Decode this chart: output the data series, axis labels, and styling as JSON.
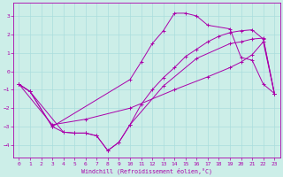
{
  "xlabel": "Windchill (Refroidissement éolien,°C)",
  "bg_color": "#cceee8",
  "line_color": "#aa00aa",
  "grid_color": "#aadddd",
  "xlim": [
    -0.5,
    23.5
  ],
  "ylim": [
    -4.7,
    3.7
  ],
  "yticks": [
    -4,
    -3,
    -2,
    -1,
    0,
    1,
    2,
    3
  ],
  "xticks": [
    0,
    1,
    2,
    3,
    4,
    5,
    6,
    7,
    8,
    9,
    10,
    11,
    12,
    13,
    14,
    15,
    16,
    17,
    18,
    19,
    20,
    21,
    22,
    23
  ],
  "line1_x": [
    0,
    1,
    3,
    10,
    11,
    12,
    13,
    14,
    15,
    16,
    17,
    19,
    20,
    21,
    22,
    23
  ],
  "line1_y": [
    -0.7,
    -1.1,
    -3.0,
    -0.45,
    0.5,
    1.5,
    2.2,
    3.15,
    3.15,
    3.0,
    2.5,
    2.3,
    0.75,
    0.6,
    -0.7,
    -1.2
  ],
  "line2_x": [
    0,
    1,
    3,
    4,
    5,
    6,
    7,
    8,
    9,
    10,
    13,
    16,
    19,
    20,
    21,
    22,
    23
  ],
  "line2_y": [
    -0.7,
    -1.1,
    -3.0,
    -3.3,
    -3.35,
    -3.35,
    -3.5,
    -4.3,
    -3.85,
    -2.9,
    -0.8,
    0.7,
    1.5,
    1.6,
    1.75,
    1.8,
    -1.2
  ],
  "line3_x": [
    0,
    3,
    6,
    10,
    14,
    17,
    19,
    20,
    21,
    22,
    23
  ],
  "line3_y": [
    -0.7,
    -2.9,
    -2.6,
    -2.0,
    -1.0,
    -0.3,
    0.2,
    0.5,
    0.9,
    1.6,
    -1.2
  ],
  "line4_x": [
    0,
    1,
    4,
    5,
    6,
    7,
    8,
    9,
    10,
    11,
    12,
    13,
    14,
    15,
    16,
    17,
    18,
    19,
    20,
    21,
    22,
    23
  ],
  "line4_y": [
    -0.7,
    -1.1,
    -3.3,
    -3.35,
    -3.35,
    -3.5,
    -4.3,
    -3.85,
    -2.9,
    -1.8,
    -1.0,
    -0.35,
    0.2,
    0.8,
    1.2,
    1.6,
    1.9,
    2.1,
    2.2,
    2.25,
    1.75,
    -1.2
  ]
}
